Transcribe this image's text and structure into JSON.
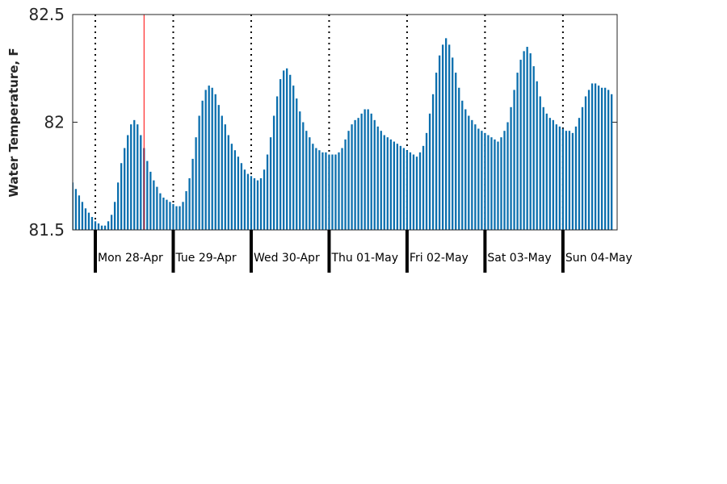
{
  "chart_data": {
    "type": "bar",
    "ylabel": "Water Temperature, F",
    "ylim": [
      81.5,
      82.5
    ],
    "yticks": [
      "81.5",
      "82",
      "82.5"
    ],
    "x_start": "2025-04-27 17:00",
    "interval_hours": 1,
    "bar_color": "#0b6fae",
    "marker_color": "#ff0000",
    "marker_time": "2025-04-28 15:00",
    "grid": "dotted vertical line at each midnight",
    "day_labels": [
      "Mon 28-Apr",
      "Tue 29-Apr",
      "Wed 30-Apr",
      "Thu 01-May",
      "Fri 02-May",
      "Sat 03-May",
      "Sun 04-May"
    ],
    "values": [
      81.72,
      81.69,
      81.66,
      81.63,
      81.6,
      81.58,
      81.56,
      81.54,
      81.53,
      81.52,
      81.52,
      81.54,
      81.57,
      81.63,
      81.72,
      81.81,
      81.88,
      81.94,
      81.99,
      82.01,
      81.99,
      81.94,
      81.88,
      81.82,
      81.77,
      81.73,
      81.7,
      81.67,
      81.65,
      81.64,
      81.63,
      81.62,
      81.61,
      81.61,
      81.63,
      81.68,
      81.74,
      81.83,
      81.93,
      82.03,
      82.1,
      82.15,
      82.17,
      82.16,
      82.13,
      82.08,
      82.03,
      81.99,
      81.94,
      81.9,
      81.87,
      81.84,
      81.81,
      81.78,
      81.76,
      81.75,
      81.74,
      81.73,
      81.74,
      81.78,
      81.85,
      81.93,
      82.03,
      82.12,
      82.2,
      82.24,
      82.25,
      82.22,
      82.17,
      82.11,
      82.05,
      82.0,
      81.96,
      81.93,
      81.9,
      81.88,
      81.87,
      81.86,
      81.86,
      81.85,
      81.85,
      81.85,
      81.86,
      81.88,
      81.92,
      81.96,
      81.99,
      82.01,
      82.02,
      82.04,
      82.06,
      82.06,
      82.04,
      82.01,
      81.98,
      81.96,
      81.94,
      81.93,
      81.92,
      81.91,
      81.9,
      81.89,
      81.88,
      81.87,
      81.86,
      81.85,
      81.84,
      81.86,
      81.89,
      81.95,
      82.04,
      82.13,
      82.23,
      82.31,
      82.36,
      82.39,
      82.36,
      82.3,
      82.23,
      82.16,
      82.1,
      82.06,
      82.03,
      82.01,
      81.99,
      81.97,
      81.96,
      81.95,
      81.94,
      81.93,
      81.92,
      81.91,
      81.93,
      81.96,
      82.0,
      82.07,
      82.15,
      82.23,
      82.29,
      82.33,
      82.35,
      82.32,
      82.26,
      82.19,
      82.12,
      82.07,
      82.04,
      82.02,
      82.01,
      81.99,
      81.98,
      81.97,
      81.96,
      81.96,
      81.95,
      81.98,
      82.02,
      82.07,
      82.12,
      82.15,
      82.18,
      82.18,
      82.17,
      82.16,
      82.16,
      82.15,
      82.13
    ]
  }
}
